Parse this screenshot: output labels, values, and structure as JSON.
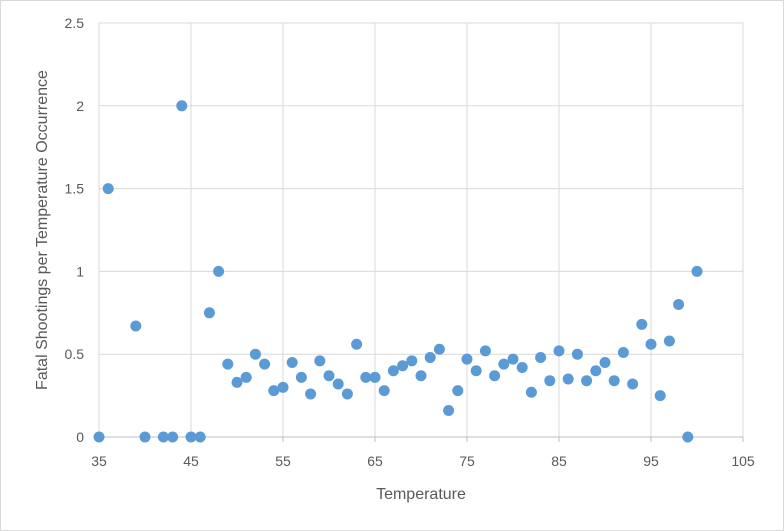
{
  "chart_data": {
    "type": "scatter",
    "title": "",
    "xlabel": "Temperature",
    "ylabel": "Fatal Shootings per Temperature Occurrence",
    "xlim": [
      35,
      105
    ],
    "ylim": [
      0,
      2.5
    ],
    "x_ticks": [
      35,
      45,
      55,
      65,
      75,
      85,
      95,
      105
    ],
    "y_ticks": [
      0,
      0.5,
      1,
      1.5,
      2,
      2.5
    ],
    "x_tick_labels": [
      "35",
      "45",
      "55",
      "65",
      "75",
      "85",
      "95",
      "105"
    ],
    "y_tick_labels": [
      "0",
      "0.5",
      "1",
      "1.5",
      "2",
      "2.5"
    ],
    "grid": "vertical-and-horizontal",
    "legend": "none",
    "colors": {
      "marker": "#5b9bd5",
      "grid": "#d9d9d9",
      "axis": "#bfbfbf",
      "text": "#595959"
    },
    "points": [
      [
        35,
        0
      ],
      [
        36,
        1.5
      ],
      [
        39,
        0.67
      ],
      [
        40,
        0
      ],
      [
        42,
        0
      ],
      [
        43,
        0
      ],
      [
        44,
        2.0
      ],
      [
        45,
        0
      ],
      [
        46,
        0
      ],
      [
        47,
        0.75
      ],
      [
        48,
        1.0
      ],
      [
        49,
        0.44
      ],
      [
        50,
        0.33
      ],
      [
        51,
        0.36
      ],
      [
        52,
        0.5
      ],
      [
        53,
        0.44
      ],
      [
        54,
        0.28
      ],
      [
        55,
        0.3
      ],
      [
        56,
        0.45
      ],
      [
        57,
        0.36
      ],
      [
        58,
        0.26
      ],
      [
        59,
        0.46
      ],
      [
        60,
        0.37
      ],
      [
        61,
        0.32
      ],
      [
        62,
        0.26
      ],
      [
        63,
        0.56
      ],
      [
        64,
        0.36
      ],
      [
        65,
        0.36
      ],
      [
        66,
        0.28
      ],
      [
        67,
        0.4
      ],
      [
        68,
        0.43
      ],
      [
        69,
        0.46
      ],
      [
        70,
        0.37
      ],
      [
        71,
        0.48
      ],
      [
        72,
        0.53
      ],
      [
        73,
        0.16
      ],
      [
        74,
        0.28
      ],
      [
        75,
        0.47
      ],
      [
        76,
        0.4
      ],
      [
        77,
        0.52
      ],
      [
        78,
        0.37
      ],
      [
        79,
        0.44
      ],
      [
        80,
        0.47
      ],
      [
        81,
        0.42
      ],
      [
        82,
        0.27
      ],
      [
        83,
        0.48
      ],
      [
        84,
        0.34
      ],
      [
        85,
        0.52
      ],
      [
        86,
        0.35
      ],
      [
        87,
        0.5
      ],
      [
        88,
        0.34
      ],
      [
        89,
        0.4
      ],
      [
        90,
        0.45
      ],
      [
        91,
        0.34
      ],
      [
        92,
        0.51
      ],
      [
        93,
        0.32
      ],
      [
        94,
        0.68
      ],
      [
        95,
        0.56
      ],
      [
        96,
        0.25
      ],
      [
        97,
        0.58
      ],
      [
        98,
        0.8
      ],
      [
        99,
        0
      ],
      [
        100,
        1.0
      ]
    ]
  }
}
